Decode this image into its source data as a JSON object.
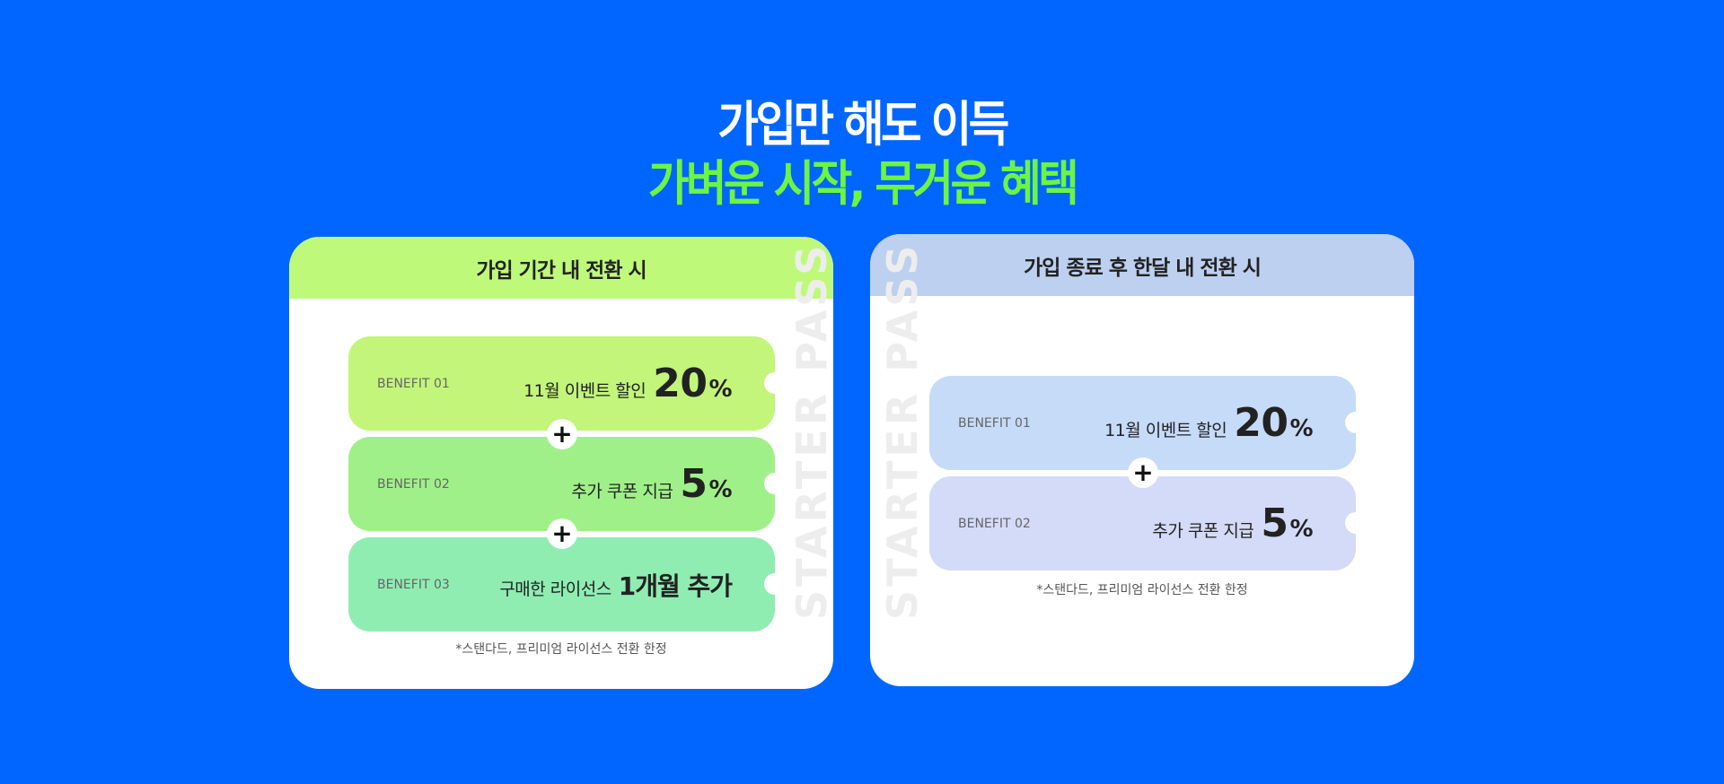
{
  "headline": {
    "line1": "가입만 해도 이득",
    "line2": "가벼운 시작, 무거운 혜택"
  },
  "colors": {
    "background": "#0066ff",
    "headline_accent": "#6cf542",
    "left_header": "#bff97a",
    "right_header": "#bdd0ef"
  },
  "left_card": {
    "header": "가입 기간 내 전환 시",
    "watermark": "STARTER PASS",
    "benefits": [
      {
        "label": "BENEFIT 01",
        "text": "11월 이벤트 할인",
        "value": "20",
        "unit": "%",
        "color": "#c2f57a"
      },
      {
        "label": "BENEFIT 02",
        "text": "추가 쿠폰 지급",
        "value": "5",
        "unit": "%",
        "color": "#a0f08a"
      },
      {
        "label": "BENEFIT 03",
        "text": "구매한 라이선스",
        "value": "1개월 추가",
        "color": "#8fedb2"
      }
    ],
    "plus": "+",
    "note": "*스탠다드, 프리미엄 라이선스 전환 한정"
  },
  "right_card": {
    "header": "가입 종료 후 한달 내 전환 시",
    "watermark": "STARTER PASS",
    "benefits": [
      {
        "label": "BENEFIT 01",
        "text": "11월 이벤트 할인",
        "value": "20",
        "unit": "%",
        "color": "#c6dbf8"
      },
      {
        "label": "BENEFIT 02",
        "text": "추가 쿠폰 지급",
        "value": "5",
        "unit": "%",
        "color": "#d3dbf8"
      }
    ],
    "plus": "+",
    "note": "*스탠다드, 프리미엄 라이선스 전환 한정"
  }
}
